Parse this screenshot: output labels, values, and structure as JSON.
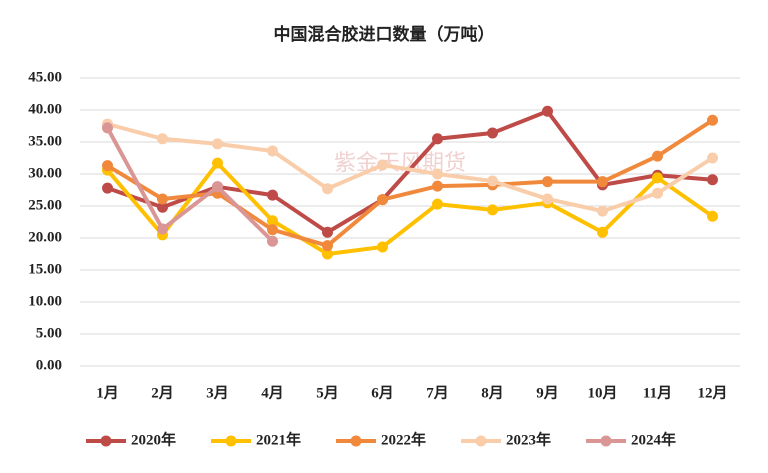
{
  "chart_data": {
    "type": "line",
    "title": "中国混合胶进口数量（万吨）",
    "watermark": "紫金天风期货",
    "categories": [
      "1月",
      "2月",
      "3月",
      "4月",
      "5月",
      "6月",
      "7月",
      "8月",
      "9月",
      "10月",
      "11月",
      "12月"
    ],
    "series": [
      {
        "name": "2020年",
        "color": "#be4b48",
        "values": [
          27.8,
          24.8,
          28.0,
          26.7,
          20.9,
          26.0,
          35.5,
          36.4,
          39.8,
          28.3,
          29.8,
          29.1
        ]
      },
      {
        "name": "2021年",
        "color": "#ffc000",
        "values": [
          30.6,
          20.5,
          31.7,
          22.7,
          17.5,
          18.6,
          25.3,
          24.4,
          25.5,
          20.9,
          29.4,
          23.4
        ]
      },
      {
        "name": "2022年",
        "color": "#f0893c",
        "values": [
          31.3,
          26.1,
          27.0,
          21.3,
          18.8,
          26.0,
          28.1,
          28.3,
          28.8,
          28.8,
          32.8,
          38.4
        ]
      },
      {
        "name": "2023年",
        "color": "#f9cdaa",
        "values": [
          37.8,
          35.5,
          34.7,
          33.6,
          27.7,
          31.4,
          30.0,
          28.9,
          26.1,
          24.2,
          27.0,
          32.5
        ]
      },
      {
        "name": "2024年",
        "color": "#d99694",
        "values": [
          37.2,
          21.4,
          28.0,
          19.5,
          null,
          null,
          null,
          null,
          null,
          null,
          null,
          null
        ]
      }
    ],
    "ylim": [
      0,
      45
    ],
    "yticks": [
      {
        "value": 0,
        "label": "0.00"
      },
      {
        "value": 5,
        "label": "5.00"
      },
      {
        "value": 10,
        "label": "10.00"
      },
      {
        "value": 15,
        "label": "15.00"
      },
      {
        "value": 20,
        "label": "20.00"
      },
      {
        "value": 25,
        "label": "25.00"
      },
      {
        "value": 30,
        "label": "30.00"
      },
      {
        "value": 35,
        "label": "35.00"
      },
      {
        "value": 40,
        "label": "40.00"
      },
      {
        "value": 45,
        "label": "45.00"
      }
    ],
    "grid": true,
    "legend": "bottom"
  }
}
